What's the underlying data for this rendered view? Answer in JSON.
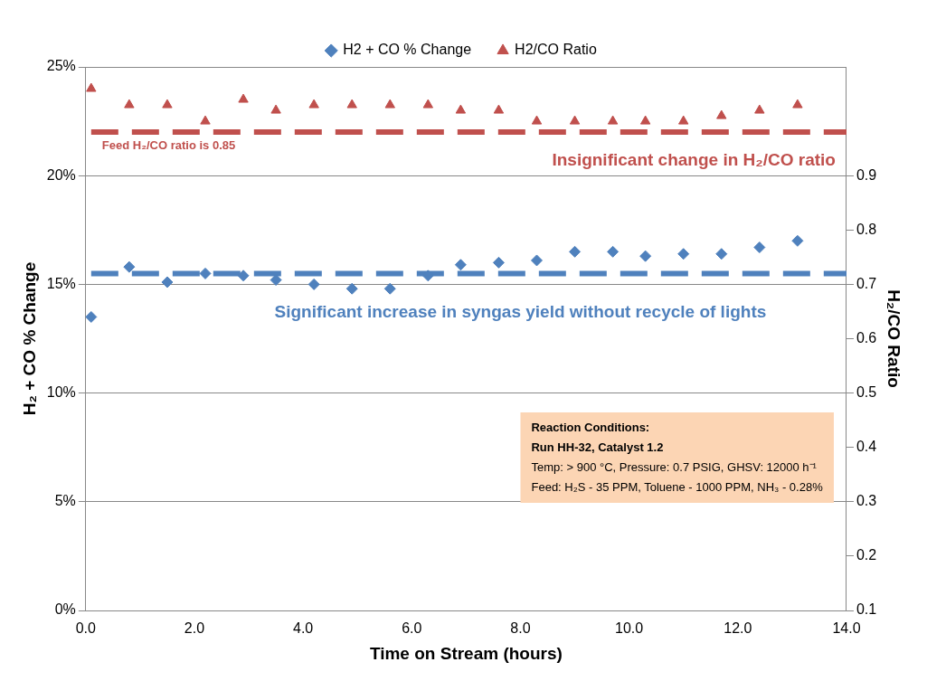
{
  "chart_data": {
    "type": "scatter",
    "xlabel": "Time on Stream (hours)",
    "ylabel": "H₂ + CO % Change",
    "y2label": "H₂/CO Ratio",
    "xlim": [
      0,
      14
    ],
    "xticks": [
      {
        "value": 0,
        "label": "0.0"
      },
      {
        "value": 2,
        "label": "2.0"
      },
      {
        "value": 4,
        "label": "4.0"
      },
      {
        "value": 6,
        "label": "6.0"
      },
      {
        "value": 8,
        "label": "8.0"
      },
      {
        "value": 10,
        "label": "10.0"
      },
      {
        "value": 12,
        "label": "12.0"
      },
      {
        "value": 14,
        "label": "14.0"
      }
    ],
    "ylim": [
      0,
      25
    ],
    "yticks": [
      {
        "value": 0,
        "label": "0%"
      },
      {
        "value": 5,
        "label": "5%"
      },
      {
        "value": 10,
        "label": "10%"
      },
      {
        "value": 15,
        "label": "15%"
      },
      {
        "value": 20,
        "label": "20%"
      },
      {
        "value": 25,
        "label": "25%"
      }
    ],
    "y2lim": [
      0.1,
      1.1
    ],
    "y2ticks": [
      0.1,
      0.2,
      0.3,
      0.4,
      0.5,
      0.6,
      0.7,
      0.8,
      0.9
    ],
    "grid": "y",
    "legend": "top",
    "series": [
      {
        "name": "H2 + CO % Change",
        "color": "#4f81bd",
        "marker": "diamond",
        "x": [
          0.1,
          0.8,
          1.5,
          2.2,
          2.9,
          3.5,
          4.2,
          4.9,
          5.6,
          6.3,
          6.9,
          7.6,
          8.3,
          9.0,
          9.7,
          10.3,
          11.0,
          11.7,
          12.4,
          13.1
        ],
        "values": [
          13.5,
          15.8,
          15.1,
          15.5,
          15.4,
          15.2,
          15.0,
          14.8,
          14.8,
          15.4,
          15.9,
          16.0,
          16.1,
          16.5,
          16.5,
          16.3,
          16.4,
          16.4,
          16.7,
          17.0
        ]
      },
      {
        "name": "H2/CO Ratio",
        "color": "#c0504d",
        "marker": "triangle",
        "axis": "y2",
        "x": [
          0.1,
          0.8,
          1.5,
          2.2,
          2.9,
          3.5,
          4.2,
          4.9,
          5.6,
          6.3,
          6.9,
          7.6,
          8.3,
          9.0,
          9.7,
          10.3,
          11.0,
          11.7,
          12.4,
          13.1
        ],
        "values": [
          1.06,
          1.03,
          1.03,
          1.0,
          1.04,
          1.02,
          1.03,
          1.03,
          1.03,
          1.03,
          1.02,
          1.02,
          1.0,
          1.0,
          1.0,
          1.0,
          1.0,
          1.01,
          1.02,
          1.03
        ]
      }
    ],
    "ref_lines": [
      {
        "axis": "y2",
        "value": 0.98,
        "label": "Feed H₂/CO ratio is 0.85",
        "color": "#c0504d",
        "line_style": "dashed"
      },
      {
        "axis": "y",
        "value": 15.5,
        "color": "#4f81bd",
        "line_style": "dashed"
      }
    ],
    "annotations": [
      "Insignificant change in H₂/CO ratio",
      "Significant increase in syngas yield without recycle of lights",
      "Reaction Conditions:",
      "Run HH-32, Catalyst 1.2",
      "Temp: > 900 °C, Pressure: 0.7 PSIG, GHSV: 12000 h⁻¹",
      "Feed: H₂S - 35 PPM, Toluene - 1000 PPM, NH₃ - 0.28%"
    ]
  }
}
